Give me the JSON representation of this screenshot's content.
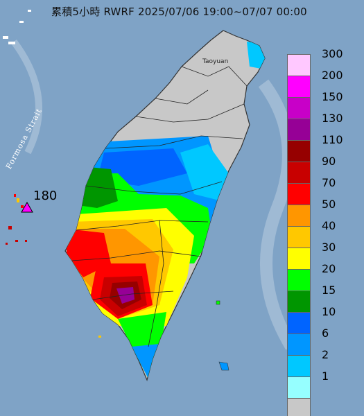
{
  "header": {
    "title": "累積5小時 RWRF 2025/07/06 19:00~07/07 00:00"
  },
  "map": {
    "strait_label": "Formosa Strait",
    "city_label": "Taoyuan",
    "max_value": "180",
    "sea_color": "#7fa3c6",
    "land_color": "#c8c8c8"
  },
  "legend": {
    "items": [
      {
        "label": "300",
        "color": "#ffc8ff"
      },
      {
        "label": "200",
        "color": "#ff00ff"
      },
      {
        "label": "150",
        "color": "#c800c8"
      },
      {
        "label": "130",
        "color": "#960096"
      },
      {
        "label": "110",
        "color": "#960000"
      },
      {
        "label": "90",
        "color": "#c80000"
      },
      {
        "label": "70",
        "color": "#ff0000"
      },
      {
        "label": "50",
        "color": "#ff9600"
      },
      {
        "label": "40",
        "color": "#ffc800"
      },
      {
        "label": "30",
        "color": "#ffff00"
      },
      {
        "label": "20",
        "color": "#00ff00"
      },
      {
        "label": "15",
        "color": "#009600"
      },
      {
        "label": "10",
        "color": "#0064ff"
      },
      {
        "label": "6",
        "color": "#0096ff"
      },
      {
        "label": "2",
        "color": "#00c8ff"
      },
      {
        "label": "1",
        "color": "#96ffff"
      },
      {
        "label": "",
        "color": "#c8c8c8"
      }
    ]
  }
}
